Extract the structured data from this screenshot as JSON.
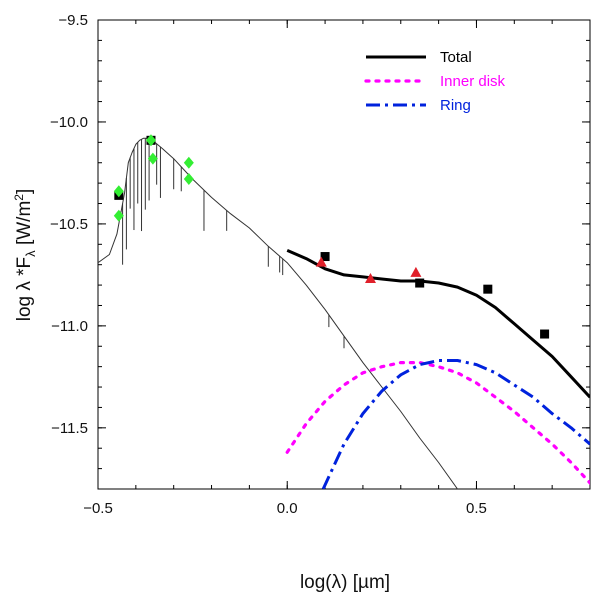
{
  "chart_data": {
    "type": "line",
    "title": "",
    "xlabel": "log(λ) [µm]",
    "ylabel": "log λ *Fλ [W/m²]",
    "xlim": [
      -0.5,
      0.8
    ],
    "ylim": [
      -11.8,
      -9.5
    ],
    "xticks": [
      -0.5,
      0.0,
      0.5
    ],
    "xtick_labels": [
      "−0.5",
      "0.0",
      "0.5"
    ],
    "yticks": [
      -9.5,
      -10.0,
      -10.5,
      -11.0,
      -11.5
    ],
    "ytick_labels": [
      "−9.5",
      "−10.0",
      "−10.5",
      "−11.0",
      "−11.5"
    ],
    "grid": false,
    "legend_position": "top-right",
    "series": [
      {
        "name": "Stellar photosphere",
        "in_legend": false,
        "style": "thin-solid",
        "color": "#333333",
        "x": [
          -0.5,
          -0.47,
          -0.45,
          -0.43,
          -0.42,
          -0.41,
          -0.4,
          -0.39,
          -0.38,
          -0.37,
          -0.36,
          -0.35,
          -0.33,
          -0.3,
          -0.27,
          -0.25,
          -0.2,
          -0.15,
          -0.1,
          -0.05,
          0.0,
          0.05,
          0.1,
          0.15,
          0.2,
          0.25,
          0.3,
          0.35,
          0.4,
          0.45
        ],
        "values": [
          -10.69,
          -10.65,
          -10.55,
          -10.35,
          -10.2,
          -10.15,
          -10.11,
          -10.09,
          -10.08,
          -10.08,
          -10.09,
          -10.1,
          -10.13,
          -10.18,
          -10.24,
          -10.28,
          -10.37,
          -10.45,
          -10.52,
          -10.61,
          -10.69,
          -10.8,
          -10.92,
          -11.05,
          -11.18,
          -11.3,
          -11.42,
          -11.55,
          -11.67,
          -11.8
        ]
      },
      {
        "name": "Total",
        "in_legend": true,
        "style": "solid",
        "color": "#000000",
        "x": [
          0.0,
          0.05,
          0.1,
          0.15,
          0.2,
          0.25,
          0.3,
          0.35,
          0.4,
          0.45,
          0.5,
          0.55,
          0.6,
          0.65,
          0.7,
          0.75,
          0.8
        ],
        "values": [
          -10.63,
          -10.67,
          -10.72,
          -10.75,
          -10.76,
          -10.77,
          -10.78,
          -10.78,
          -10.79,
          -10.81,
          -10.85,
          -10.91,
          -10.99,
          -11.07,
          -11.15,
          -11.25,
          -11.35
        ]
      },
      {
        "name": "Inner disk",
        "in_legend": true,
        "style": "dotted",
        "color": "#ff00ff",
        "x": [
          0.0,
          0.05,
          0.1,
          0.15,
          0.2,
          0.25,
          0.3,
          0.35,
          0.4,
          0.45,
          0.5,
          0.55,
          0.6,
          0.65,
          0.7,
          0.75,
          0.8
        ],
        "values": [
          -11.62,
          -11.48,
          -11.37,
          -11.29,
          -11.23,
          -11.2,
          -11.18,
          -11.18,
          -11.2,
          -11.23,
          -11.28,
          -11.35,
          -11.42,
          -11.5,
          -11.58,
          -11.67,
          -11.77
        ]
      },
      {
        "name": "Ring",
        "in_legend": true,
        "style": "dash-dot",
        "color": "#0022dd",
        "x": [
          0.095,
          0.12,
          0.15,
          0.2,
          0.25,
          0.3,
          0.35,
          0.4,
          0.45,
          0.5,
          0.55,
          0.6,
          0.65,
          0.7,
          0.75,
          0.8
        ],
        "values": [
          -11.8,
          -11.7,
          -11.58,
          -11.43,
          -11.32,
          -11.24,
          -11.19,
          -11.17,
          -11.17,
          -11.19,
          -11.23,
          -11.29,
          -11.35,
          -11.43,
          -11.5,
          -11.58
        ]
      }
    ],
    "markers": [
      {
        "name": "Black squares",
        "shape": "square",
        "color": "#000000",
        "points": [
          [
            -0.445,
            -10.36
          ],
          [
            -0.36,
            -10.09
          ],
          [
            0.1,
            -10.66
          ],
          [
            0.35,
            -10.79
          ],
          [
            0.53,
            -10.82
          ],
          [
            0.68,
            -11.04
          ]
        ]
      },
      {
        "name": "Red triangles",
        "shape": "triangle",
        "color": "#e0202a",
        "points": [
          [
            0.09,
            -10.69
          ],
          [
            0.22,
            -10.77
          ],
          [
            0.34,
            -10.74
          ]
        ]
      },
      {
        "name": "Green diamonds",
        "shape": "diamond",
        "color": "#33ee33",
        "points": [
          [
            -0.445,
            -10.34
          ],
          [
            -0.445,
            -10.46
          ],
          [
            -0.36,
            -10.09
          ],
          [
            -0.355,
            -10.18
          ],
          [
            -0.26,
            -10.2
          ],
          [
            -0.26,
            -10.28
          ]
        ]
      }
    ]
  }
}
